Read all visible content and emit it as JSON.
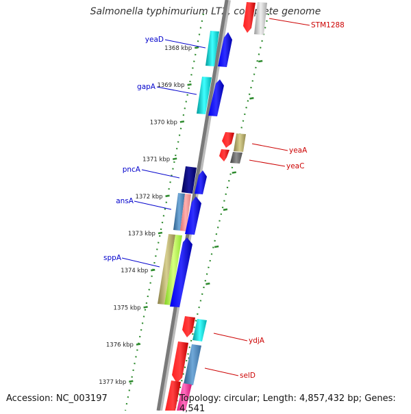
{
  "header": {
    "title": "Salmonella typhimurium LT2, complete genome"
  },
  "footer": {
    "accession": "Accession: NC_003197",
    "summary": "Topology: circular; Length: 4,857,432 bp; Genes: 4,541"
  },
  "colors": {
    "forward_label": "#0000cc",
    "reverse_label": "#cc0000",
    "tick": "#2e8b2e",
    "backbone": "#808080"
  },
  "map": {
    "ticks_kbp": [
      "1368 kbp",
      "1369 kbp",
      "1370 kbp",
      "1371 kbp",
      "1372 kbp",
      "1373 kbp",
      "1374 kbp",
      "1375 kbp",
      "1376 kbp",
      "1377 kbp"
    ],
    "forward_genes": [
      {
        "label": "yeaD",
        "color": "#00c8c8"
      },
      {
        "label": "gapA",
        "color": "#00c8c8"
      },
      {
        "label": "pncA",
        "color": "#0a0a80"
      },
      {
        "label": "ansA",
        "color": "#4682b4"
      },
      {
        "label": "sppA",
        "color": "#a8a060"
      }
    ],
    "reverse_genes": [
      {
        "label": "STM1288",
        "color": "#c0c0c0"
      },
      {
        "label": "yeaA",
        "color": "#b8b070"
      },
      {
        "label": "yeaC",
        "color": "#606060"
      },
      {
        "label": "ydjA",
        "color": "#00e0e0"
      },
      {
        "label": "selD",
        "color": "#4682b4"
      }
    ]
  }
}
